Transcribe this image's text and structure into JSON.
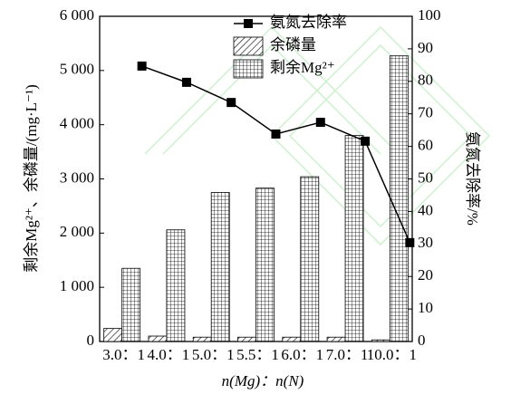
{
  "chart_data": {
    "type": "bar_line",
    "categories": [
      "3.0：1",
      "4.0：1",
      "5.0：1",
      "5.5：1",
      "6.0：1",
      "7.0：1",
      "10.0：1"
    ],
    "x_label": "n(Mg)：n(N)",
    "y_label": "剩余Mg²⁺、余磷量/(mg·L⁻¹)",
    "y2_label": "氨氮去除率/%",
    "ylim": [
      0,
      6000
    ],
    "yticks": [
      0,
      {
        "value": 1000,
        "label": "1 000"
      },
      {
        "value": 2000,
        "label": "2 000"
      },
      {
        "value": 3000,
        "label": "3 000"
      },
      {
        "value": 4000,
        "label": "4 000"
      },
      {
        "value": 5000,
        "label": "5 000"
      },
      {
        "value": 6000,
        "label": "6 000"
      }
    ],
    "y2lim": [
      0,
      100
    ],
    "y2ticks": [
      0,
      10,
      20,
      30,
      40,
      50,
      60,
      70,
      80,
      90,
      100
    ],
    "series": [
      {
        "name": "氨氮去除率",
        "color": "#000000",
        "kind": "line",
        "axis": "y2",
        "values": [
          84.7,
          79.7,
          73.5,
          63.8,
          67.4,
          61.6,
          30.4
        ]
      },
      {
        "name": "余磷量",
        "color": "#000000",
        "kind": "bar",
        "pattern": "diagonal",
        "values": [
          240,
          100,
          80,
          80,
          80,
          80,
          30
        ]
      },
      {
        "name": "剩余Mg²⁺",
        "color": "#000000",
        "kind": "bar",
        "pattern": "grid",
        "values": [
          1350,
          2060,
          2750,
          2830,
          3040,
          3800,
          5270
        ]
      }
    ]
  }
}
